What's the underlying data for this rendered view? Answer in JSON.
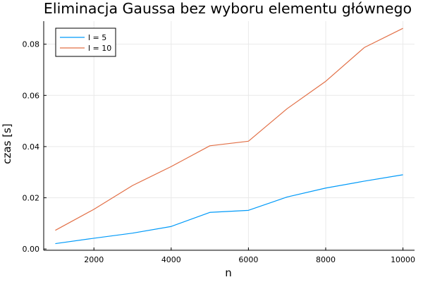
{
  "chart_data": {
    "type": "line",
    "title": "Eliminacja Gaussa bez wyboru elementu głównego",
    "xlabel": "n",
    "ylabel": "czas [s]",
    "xlim": [
      700,
      10300
    ],
    "ylim": [
      -0.0005,
      0.089
    ],
    "x": [
      1000,
      2000,
      3000,
      4000,
      5000,
      6000,
      7000,
      8000,
      9000,
      10000
    ],
    "xticks": [
      "2000",
      "4000",
      "6000",
      "8000",
      "10000"
    ],
    "yticks": [
      "0.00",
      "0.02",
      "0.04",
      "0.06",
      "0.08"
    ],
    "grid": true,
    "legend_position": "top-left",
    "series": [
      {
        "name": "l = 5",
        "color": "#009af9",
        "values": [
          0.0021,
          0.0042,
          0.0062,
          0.0088,
          0.0143,
          0.0151,
          0.0203,
          0.0238,
          0.0265,
          0.029
        ]
      },
      {
        "name": "l = 10",
        "color": "#e26f46",
        "values": [
          0.0073,
          0.0155,
          0.0248,
          0.0322,
          0.0403,
          0.0421,
          0.0548,
          0.0655,
          0.0787,
          0.0862
        ]
      }
    ]
  }
}
